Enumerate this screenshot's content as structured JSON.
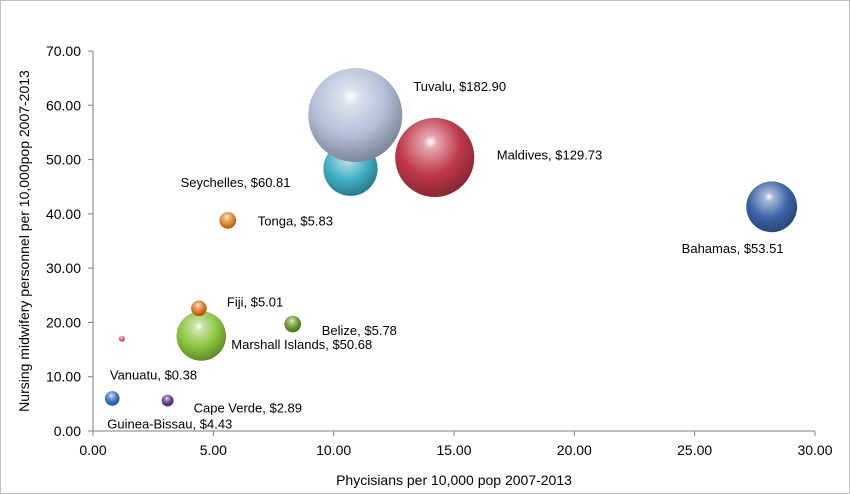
{
  "chart_data": {
    "type": "scatter",
    "subtype": "bubble",
    "xlabel": "Phycisians per 10,000 pop 2007-2013",
    "ylabel": "Nursing midwifery personnel per 10,000pop 2007-2013",
    "xlim": [
      0,
      30
    ],
    "ylim": [
      0,
      70
    ],
    "xticks": [
      "0.00",
      "5.00",
      "10.00",
      "15.00",
      "20.00",
      "25.00",
      "30.00"
    ],
    "yticks": [
      "0.00",
      "10.00",
      "20.00",
      "30.00",
      "40.00",
      "50.00",
      "60.00",
      "70.00"
    ],
    "grid": false,
    "legend": "none",
    "points": [
      {
        "label": "Tuvalu, $182.90",
        "x": 10.9,
        "y": 58.2,
        "size": 182.9,
        "color": "#b4c0d8"
      },
      {
        "label": "Maldives, $129.73",
        "x": 14.2,
        "y": 50.4,
        "size": 129.73,
        "color": "#c0394a"
      },
      {
        "label": "Seychelles, $60.81",
        "x": 10.7,
        "y": 48.3,
        "size": 60.81,
        "color": "#3fb0c4"
      },
      {
        "label": "Bahamas, $53.51",
        "x": 28.2,
        "y": 41.3,
        "size": 53.51,
        "color": "#3c64a8"
      },
      {
        "label": "Tonga, $5.83",
        "x": 5.6,
        "y": 38.8,
        "size": 5.83,
        "color": "#e08a2a"
      },
      {
        "label": "Fiji, $5.01",
        "x": 4.4,
        "y": 22.6,
        "size": 5.01,
        "color": "#e07a25"
      },
      {
        "label": "Belize, $5.78",
        "x": 8.3,
        "y": 19.7,
        "size": 5.78,
        "color": "#6f9a2d"
      },
      {
        "label": "Marshall Islands, $50.68",
        "x": 4.5,
        "y": 17.5,
        "size": 50.68,
        "color": "#8cc63f"
      },
      {
        "label": "Vanuatu, $0.38",
        "x": 1.2,
        "y": 17.0,
        "size": 0.38,
        "color": "#d9667a"
      },
      {
        "label": "Guinea-Bissau, $4.43",
        "x": 0.8,
        "y": 6.0,
        "size": 4.43,
        "color": "#3f74c4"
      },
      {
        "label": "Cape Verde, $2.89",
        "x": 3.1,
        "y": 5.6,
        "size": 2.89,
        "color": "#6a3f96"
      }
    ]
  }
}
